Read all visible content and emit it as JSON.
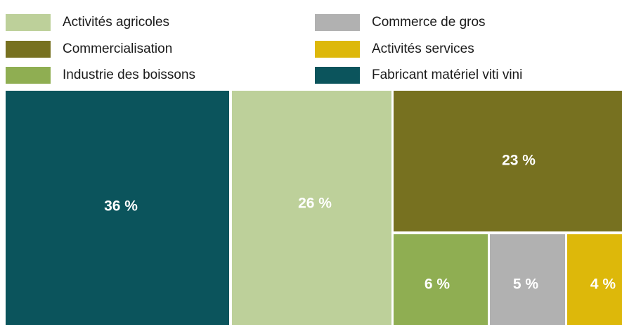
{
  "chart_data": {
    "type": "treemap",
    "title": "",
    "legend_placement": "top",
    "series": [
      {
        "name": "Activités agricoles",
        "value": 26,
        "label": "26 %",
        "color": "#bdd09a"
      },
      {
        "name": "Commercialisation",
        "value": 23,
        "label": "23 %",
        "color": "#777120"
      },
      {
        "name": "Industrie des boissons",
        "value": 6,
        "label": "6 %",
        "color": "#8fae52"
      },
      {
        "name": "Commerce de gros",
        "value": 5,
        "label": "5 %",
        "color": "#b1b1b1"
      },
      {
        "name": "Activités services",
        "value": 4,
        "label": "4 %",
        "color": "#ddb80a"
      },
      {
        "name": "Fabricant matériel viti vini",
        "value": 36,
        "label": "36 %",
        "color": "#0b545c"
      }
    ]
  }
}
